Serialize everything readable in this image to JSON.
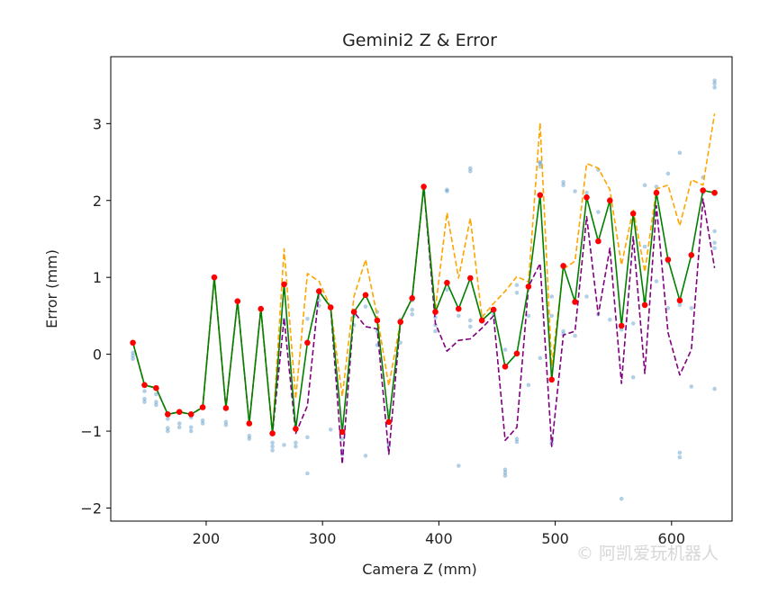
{
  "chart_data": {
    "type": "line",
    "title": "Gemini2 Z & Error",
    "xlabel": "Camera Z (mm)",
    "ylabel": "Error (mm)",
    "xlim": [
      118,
      652
    ],
    "ylim": [
      -2.17,
      3.87
    ],
    "xticks": [
      200,
      300,
      400,
      500,
      600
    ],
    "yticks": [
      -2,
      -1,
      0,
      1,
      2,
      3
    ],
    "x": [
      137,
      147,
      157,
      167,
      177,
      187,
      197,
      207,
      217,
      227,
      237,
      247,
      257,
      267,
      277,
      287,
      297,
      307,
      317,
      327,
      337,
      347,
      357,
      367,
      377,
      387,
      397,
      407,
      417,
      427,
      437,
      447,
      457,
      467,
      477,
      487,
      497,
      507,
      517,
      527,
      537,
      547,
      557,
      567,
      577,
      587,
      597,
      607,
      617,
      627,
      637
    ],
    "series": [
      {
        "color": "#008000",
        "style": "solid",
        "markers": "#ff0000",
        "values": [
          0.15,
          -0.4,
          -0.44,
          -0.78,
          -0.75,
          -0.78,
          -0.69,
          1.0,
          -0.7,
          0.69,
          -0.9,
          0.59,
          -1.03,
          0.91,
          -0.97,
          0.15,
          0.82,
          0.61,
          -1.01,
          0.55,
          0.77,
          0.44,
          -0.88,
          0.42,
          0.73,
          2.18,
          0.55,
          0.93,
          0.59,
          0.99,
          0.44,
          0.58,
          -0.16,
          0.01,
          0.88,
          2.07,
          -0.33,
          1.15,
          0.68,
          2.04,
          1.47,
          2.0,
          0.37,
          1.83,
          0.64,
          2.1,
          1.23,
          0.7,
          1.29,
          2.13,
          2.1
        ]
      },
      {
        "color": "#ffa500",
        "style": "dashed",
        "values": [
          0.15,
          -0.4,
          -0.44,
          -0.78,
          -0.75,
          -0.78,
          -0.69,
          1.0,
          -0.7,
          0.69,
          -0.9,
          0.59,
          -1.03,
          1.37,
          -0.58,
          1.05,
          0.95,
          0.61,
          -0.55,
          0.75,
          1.23,
          0.5,
          -0.41,
          0.42,
          0.73,
          2.18,
          0.59,
          1.84,
          0.99,
          1.77,
          0.48,
          0.66,
          0.82,
          1.01,
          0.94,
          3.01,
          -0.15,
          1.11,
          1.21,
          2.48,
          2.42,
          2.14,
          1.16,
          1.89,
          1.07,
          2.15,
          2.2,
          1.67,
          2.27,
          2.2,
          3.13
        ]
      },
      {
        "color": "#800080",
        "style": "dashed",
        "values": [
          0.15,
          -0.4,
          -0.44,
          -0.78,
          -0.75,
          -0.78,
          -0.69,
          1.0,
          -0.7,
          0.69,
          -0.9,
          0.59,
          -1.03,
          0.47,
          -1.03,
          -0.67,
          0.82,
          0.61,
          -1.43,
          0.55,
          0.36,
          0.33,
          -1.3,
          0.42,
          0.73,
          2.18,
          0.4,
          0.04,
          0.18,
          0.2,
          0.34,
          0.5,
          -1.12,
          -0.95,
          0.88,
          1.18,
          -1.2,
          0.25,
          0.3,
          1.79,
          0.51,
          1.38,
          -0.38,
          1.53,
          -0.25,
          1.93,
          0.28,
          -0.27,
          0.06,
          2.02,
          1.12
        ]
      }
    ],
    "scatter": {
      "color": "#1f77b4",
      "points": [
        [
          137,
          -0.02
        ],
        [
          137,
          -0.06
        ],
        [
          137,
          0.02
        ],
        [
          147,
          -0.58
        ],
        [
          147,
          -0.62
        ],
        [
          147,
          -0.48
        ],
        [
          157,
          -0.62
        ],
        [
          157,
          -0.66
        ],
        [
          157,
          -0.52
        ],
        [
          167,
          -0.96
        ],
        [
          167,
          -1.0
        ],
        [
          167,
          -0.84
        ],
        [
          177,
          -0.9
        ],
        [
          177,
          -0.95
        ],
        [
          187,
          -0.95
        ],
        [
          187,
          -1.0
        ],
        [
          187,
          -0.82
        ],
        [
          197,
          -0.86
        ],
        [
          197,
          -0.9
        ],
        [
          207,
          0.98
        ],
        [
          217,
          -0.88
        ],
        [
          217,
          -0.92
        ],
        [
          227,
          0.68
        ],
        [
          237,
          -1.06
        ],
        [
          237,
          -1.1
        ],
        [
          247,
          0.58
        ],
        [
          257,
          -1.2
        ],
        [
          257,
          -1.25
        ],
        [
          257,
          -1.15
        ],
        [
          267,
          -1.18
        ],
        [
          267,
          0.45
        ],
        [
          267,
          0.4
        ],
        [
          277,
          -1.2
        ],
        [
          277,
          -1.15
        ],
        [
          287,
          -1.55
        ],
        [
          287,
          0.46
        ],
        [
          287,
          -1.08
        ],
        [
          297,
          0.63
        ],
        [
          297,
          0.7
        ],
        [
          307,
          0.6
        ],
        [
          307,
          -0.98
        ],
        [
          317,
          -1.3
        ],
        [
          317,
          -1.25
        ],
        [
          317,
          -1.1
        ],
        [
          327,
          0.38
        ],
        [
          327,
          0.5
        ],
        [
          337,
          0.62
        ],
        [
          337,
          -1.32
        ],
        [
          347,
          0.55
        ],
        [
          347,
          0.3
        ],
        [
          347,
          0.12
        ],
        [
          357,
          -1.2
        ],
        [
          357,
          -1.16
        ],
        [
          357,
          -0.74
        ],
        [
          367,
          0.45
        ],
        [
          367,
          0.4
        ],
        [
          367,
          0.15
        ],
        [
          377,
          0.52
        ],
        [
          377,
          0.58
        ],
        [
          377,
          0.7
        ],
        [
          387,
          2.15
        ],
        [
          387,
          2.1
        ],
        [
          397,
          0.3
        ],
        [
          397,
          0.38
        ],
        [
          397,
          0.48
        ],
        [
          407,
          2.12
        ],
        [
          407,
          2.14
        ],
        [
          407,
          0.84
        ],
        [
          417,
          0.5
        ],
        [
          417,
          -1.45
        ],
        [
          417,
          0.58
        ],
        [
          427,
          2.38
        ],
        [
          427,
          2.42
        ],
        [
          427,
          0.44
        ],
        [
          427,
          0.36
        ],
        [
          437,
          0.42
        ],
        [
          437,
          0.5
        ],
        [
          447,
          0.52
        ],
        [
          447,
          0.56
        ],
        [
          457,
          -1.5
        ],
        [
          457,
          -1.54
        ],
        [
          457,
          -1.58
        ],
        [
          457,
          0.06
        ],
        [
          467,
          -1.1
        ],
        [
          467,
          -1.14
        ],
        [
          467,
          0.9
        ],
        [
          467,
          0.8
        ],
        [
          477,
          -0.4
        ],
        [
          477,
          0.5
        ],
        [
          487,
          2.44
        ],
        [
          487,
          2.48
        ],
        [
          487,
          2.5
        ],
        [
          487,
          -0.05
        ],
        [
          497,
          -1.12
        ],
        [
          497,
          -1.16
        ],
        [
          497,
          0.5
        ],
        [
          497,
          0.75
        ],
        [
          507,
          2.24
        ],
        [
          507,
          2.2
        ],
        [
          507,
          0.3
        ],
        [
          507,
          0.26
        ],
        [
          517,
          0.24
        ],
        [
          517,
          2.12
        ],
        [
          527,
          2.1
        ],
        [
          527,
          0.75
        ],
        [
          537,
          0.52
        ],
        [
          537,
          1.85
        ],
        [
          537,
          2.4
        ],
        [
          547,
          1.98
        ],
        [
          547,
          0.45
        ],
        [
          547,
          2.02
        ],
        [
          557,
          -1.88
        ],
        [
          557,
          0.32
        ],
        [
          567,
          -0.3
        ],
        [
          567,
          1.82
        ],
        [
          567,
          0.4
        ],
        [
          577,
          2.2
        ],
        [
          577,
          1.4
        ],
        [
          577,
          0.7
        ],
        [
          587,
          2.18
        ],
        [
          587,
          2.12
        ],
        [
          587,
          0.95
        ],
        [
          597,
          2.35
        ],
        [
          597,
          0.6
        ],
        [
          597,
          1.2
        ],
        [
          607,
          2.62
        ],
        [
          607,
          -1.28
        ],
        [
          607,
          -1.34
        ],
        [
          607,
          0.64
        ],
        [
          617,
          -0.42
        ],
        [
          617,
          0.6
        ],
        [
          617,
          1.3
        ],
        [
          627,
          2.3
        ],
        [
          627,
          2.1
        ],
        [
          637,
          3.56
        ],
        [
          637,
          3.52
        ],
        [
          637,
          3.47
        ],
        [
          637,
          1.6
        ],
        [
          637,
          1.45
        ],
        [
          637,
          1.38
        ],
        [
          637,
          -0.45
        ],
        [
          637,
          2.08
        ]
      ]
    }
  },
  "watermark": "© 阿凯爱玩机器人"
}
